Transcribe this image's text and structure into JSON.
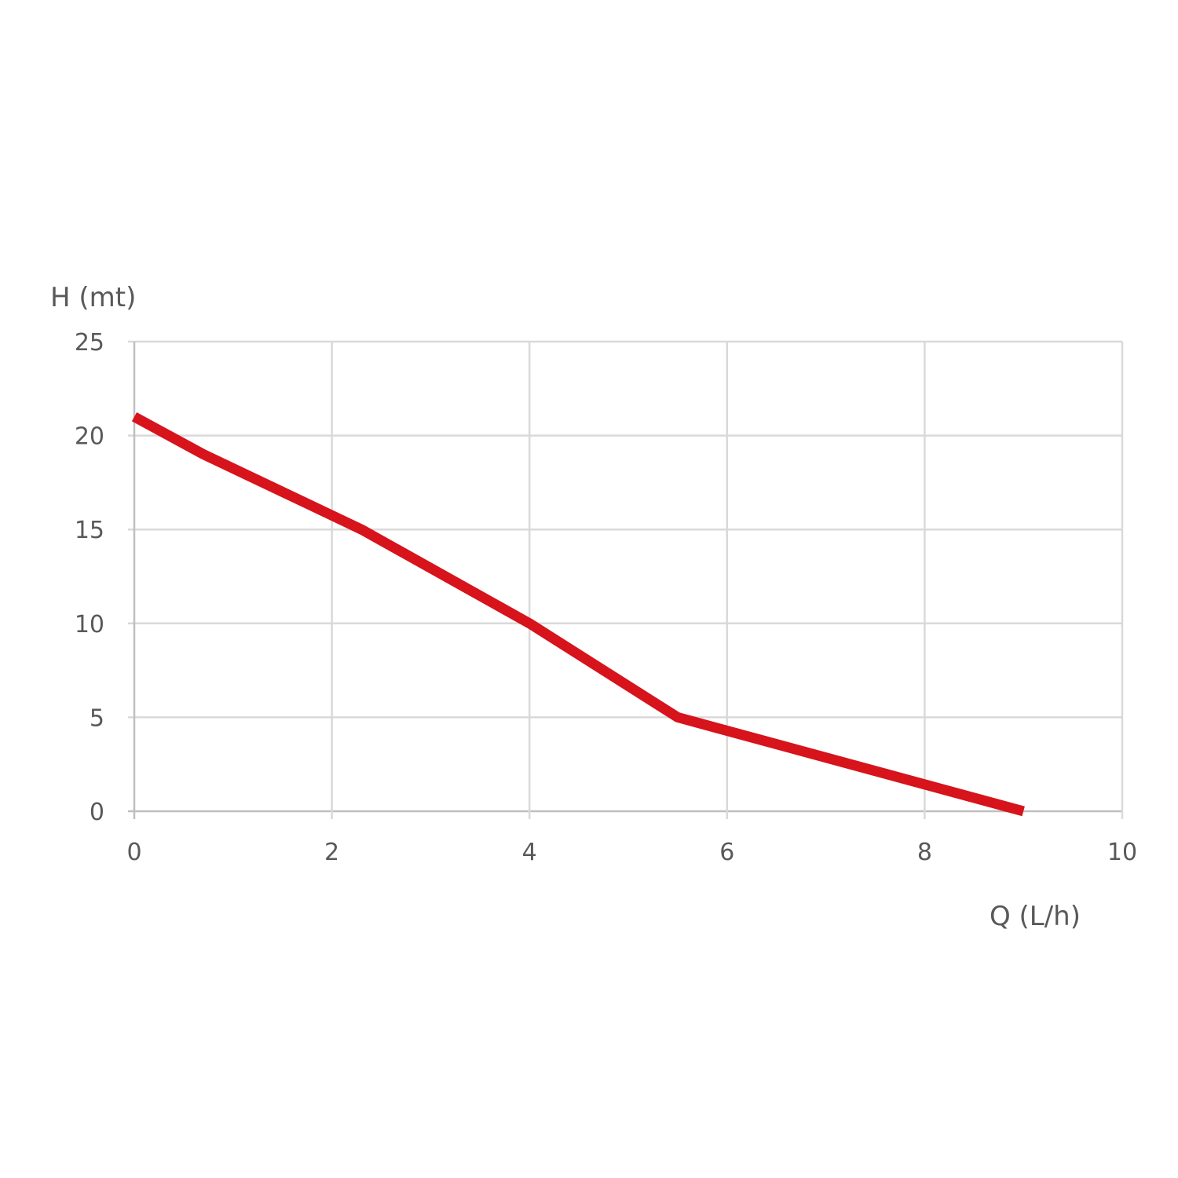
{
  "chart_data": {
    "type": "line",
    "xlabel": "Q (L/h)",
    "ylabel": "H (mt)",
    "xlim": [
      0,
      10
    ],
    "ylim": [
      0,
      25
    ],
    "x_ticks": [
      "0",
      "2",
      "4",
      "6",
      "8",
      "10"
    ],
    "y_ticks": [
      "0",
      "5",
      "10",
      "15",
      "20",
      "25"
    ],
    "grid": true,
    "series": [
      {
        "color": "#d7131b",
        "x": [
          0,
          0.7,
          2.3,
          4,
          5.5,
          9
        ],
        "y": [
          21,
          19,
          15,
          10,
          5,
          0
        ]
      }
    ]
  }
}
